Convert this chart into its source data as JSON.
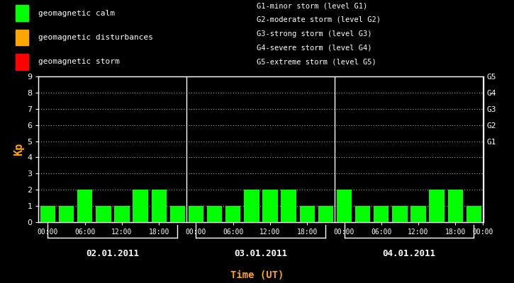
{
  "background_color": "#000000",
  "bar_color_calm": "#00ff00",
  "bar_color_disturbance": "#ffa500",
  "bar_color_storm": "#ff0000",
  "xlabel": "Time (UT)",
  "ylabel": "Kp",
  "ylabel_color": "#ffa500",
  "xlabel_color": "#ffa500",
  "tick_color": "#ffffff",
  "axis_color": "#ffffff",
  "days": [
    "02.01.2011",
    "03.01.2011",
    "04.01.2011"
  ],
  "kp_values": [
    1,
    1,
    2,
    1,
    1,
    2,
    2,
    1,
    1,
    1,
    1,
    2,
    2,
    2,
    1,
    1,
    2,
    1,
    1,
    1,
    1,
    2,
    2,
    1
  ],
  "ylim": [
    0,
    9
  ],
  "yticks": [
    0,
    1,
    2,
    3,
    4,
    5,
    6,
    7,
    8,
    9
  ],
  "right_labels": [
    [
      "G5",
      9
    ],
    [
      "G4",
      8
    ],
    [
      "G3",
      7
    ],
    [
      "G2",
      6
    ],
    [
      "G1",
      5
    ]
  ],
  "legend_items": [
    {
      "label": "geomagnetic calm",
      "color": "#00ff00"
    },
    {
      "label": "geomagnetic disturbances",
      "color": "#ffa500"
    },
    {
      "label": "geomagnetic storm",
      "color": "#ff0000"
    }
  ],
  "storm_info": [
    "G1-minor storm (level G1)",
    "G2-moderate storm (level G2)",
    "G3-strong storm (level G3)",
    "G4-severe storm (level G4)",
    "G5-extreme storm (level G5)"
  ],
  "num_days": 3,
  "bars_per_day": 8,
  "bar_width": 0.82
}
